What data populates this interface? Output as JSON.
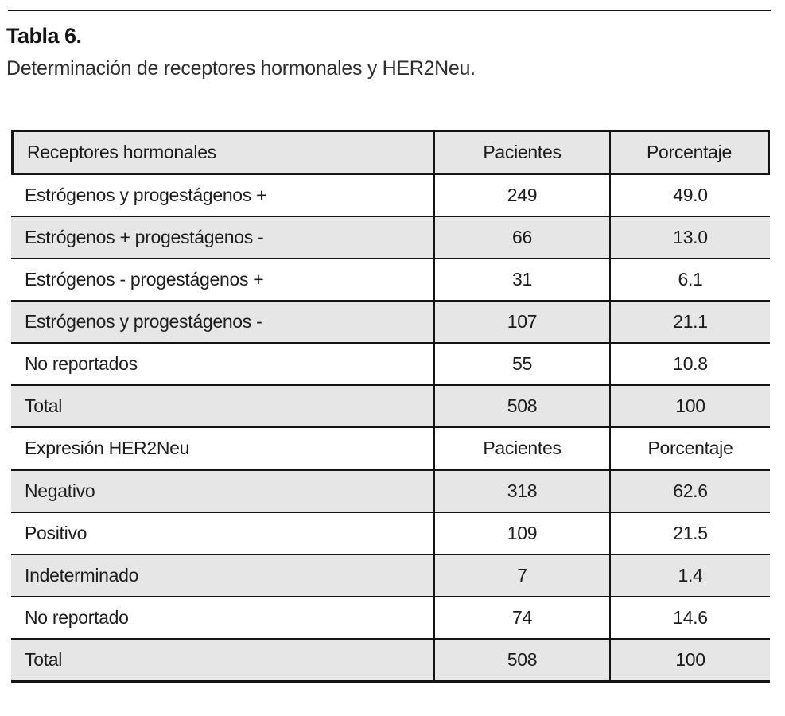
{
  "page": {
    "title": "Tabla 6.",
    "caption": "Determinación de receptores hormonales y HER2Neu."
  },
  "colors": {
    "row_alt_background": "#e6e6e6",
    "border": "#141414",
    "text": "#1c1c1c"
  },
  "chart_data": {
    "type": "table",
    "title": "Tabla 6. Determinación de receptores hormonales y HER2Neu.",
    "sections": [
      {
        "header": [
          "Receptores hormonales",
          "Pacientes",
          "Porcentaje"
        ],
        "rows": [
          [
            "Estrógenos y progestágenos +",
            249,
            49.0
          ],
          [
            "Estrógenos + progestágenos -",
            66,
            13.0
          ],
          [
            "Estrógenos - progestágenos +",
            31,
            6.1
          ],
          [
            "Estrógenos y progestágenos -",
            107,
            21.1
          ],
          [
            "No reportados",
            55,
            10.8
          ],
          [
            "Total",
            508,
            100
          ]
        ]
      },
      {
        "header": [
          "Expresión HER2Neu",
          "Pacientes",
          "Porcentaje"
        ],
        "rows": [
          [
            "Negativo",
            318,
            62.6
          ],
          [
            "Positivo",
            109,
            21.5
          ],
          [
            "Indeterminado",
            7,
            1.4
          ],
          [
            "No reportado",
            74,
            14.6
          ],
          [
            "Total",
            508,
            100
          ]
        ]
      }
    ]
  },
  "table": {
    "rows": [
      {
        "c0": "Receptores hormonales",
        "c1": "Pacientes",
        "c2": "Porcentaje"
      },
      {
        "c0": "Estrógenos y progestágenos +",
        "c1": "249",
        "c2": "49.0"
      },
      {
        "c0": "Estrógenos + progestágenos -",
        "c1": "66",
        "c2": "13.0"
      },
      {
        "c0": "Estrógenos - progestágenos +",
        "c1": "31",
        "c2": "6.1"
      },
      {
        "c0": "Estrógenos y progestágenos -",
        "c1": "107",
        "c2": "21.1"
      },
      {
        "c0": "No reportados",
        "c1": "55",
        "c2": "10.8"
      },
      {
        "c0": "Total",
        "c1": "508",
        "c2": "100"
      },
      {
        "c0": "Expresión HER2Neu",
        "c1": "Pacientes",
        "c2": "Porcentaje"
      },
      {
        "c0": "Negativo",
        "c1": "318",
        "c2": "62.6"
      },
      {
        "c0": "Positivo",
        "c1": "109",
        "c2": "21.5"
      },
      {
        "c0": "Indeterminado",
        "c1": "7",
        "c2": "1.4"
      },
      {
        "c0": "No reportado",
        "c1": "74",
        "c2": "14.6"
      },
      {
        "c0": "Total",
        "c1": "508",
        "c2": "100"
      }
    ]
  }
}
